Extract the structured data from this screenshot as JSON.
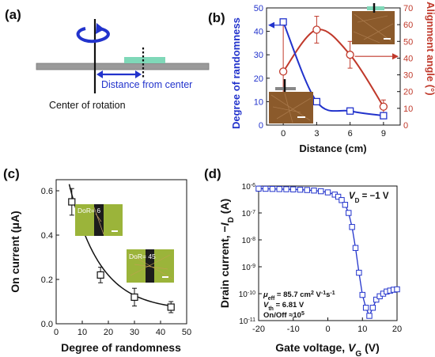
{
  "colors": {
    "blue": "#2233cc",
    "red": "#c0392b",
    "black": "#111111",
    "substrate": "#9a9a9a",
    "film": "#7fd8b8",
    "inset_brown": "#8b5a2b",
    "inset_green": "#9bb43a"
  },
  "panel_a": {
    "label": "(a)",
    "distance_label": "Distance from center",
    "center_label": "Center of rotation"
  },
  "panel_b": {
    "label": "(b)"
  },
  "panel_c": {
    "label": "(c)",
    "inset_top": "DoR= 6",
    "inset_bottom": "DoR= 45"
  },
  "panel_d": {
    "label": "(d)",
    "vd": "V",
    "vd_sub": "D",
    "vd_value": " = −1 V",
    "mu": "μ",
    "mu_sub": "eff",
    "mu_value": " = 85.7 cm",
    "mu_sup1": "2",
    "mu_mid": " V",
    "mu_sup2": "-1",
    "mu_end": "s",
    "mu_sup3": "-1",
    "vth": "V",
    "vth_sub": "th",
    "vth_value": " = 6.81 V",
    "onoff": "On/Off ≈10",
    "onoff_sup": "5"
  },
  "chart_data": [
    {
      "type": "line",
      "panel": "b",
      "x": [
        0,
        3,
        6,
        9
      ],
      "xlabel": "Distance (cm)",
      "xticks": [
        0,
        3,
        6,
        9
      ],
      "xlim": [
        -1.5,
        10.5
      ],
      "series": [
        {
          "axis": "left",
          "marker": "square",
          "values": [
            44,
            10,
            6,
            4
          ],
          "errors": [
            0,
            0,
            0,
            0
          ]
        },
        {
          "axis": "right",
          "marker": "circle",
          "values": [
            32,
            57,
            42,
            11
          ],
          "errors": [
            28,
            8,
            8,
            4
          ]
        }
      ],
      "ylabel_left": "Degree of randomness",
      "ylabel_right": "Alignment angle (°)",
      "ylim_left": [
        0,
        50
      ],
      "yticks_left": [
        0,
        10,
        20,
        30,
        40,
        50
      ],
      "ylim_right": [
        0,
        70
      ],
      "yticks_right": [
        0,
        10,
        20,
        30,
        40,
        50,
        60,
        70
      ]
    },
    {
      "type": "scatter",
      "panel": "c",
      "series": [
        {
          "x": [
            6,
            17,
            30,
            44
          ],
          "values": [
            0.55,
            0.22,
            0.12,
            0.075
          ],
          "errors": [
            0.06,
            0.035,
            0.04,
            0.025
          ]
        }
      ],
      "xlabel": "Degree of randomness",
      "ylabel": "On current (μA)",
      "xlim": [
        0,
        50
      ],
      "xticks": [
        0,
        10,
        20,
        30,
        40,
        50
      ],
      "ylim": [
        0,
        0.65
      ],
      "yticks": [
        0.0,
        0.2,
        0.4,
        0.6
      ]
    },
    {
      "type": "line",
      "panel": "d",
      "xlabel": "Gate voltage, ",
      "xlabel_var": "V",
      "xlabel_sub": "G",
      "xlabel_unit": " (V)",
      "ylabel": "Drain current, −",
      "ylabel_var": "I",
      "ylabel_sub": "D",
      "ylabel_unit": " (A)",
      "xlim": [
        -20,
        20
      ],
      "xticks": [
        -20,
        -10,
        0,
        10,
        20
      ],
      "yscale": "log",
      "ylim_exp": [
        -11,
        -6
      ],
      "ytick_exponents": [
        -11,
        -10,
        -9,
        -8,
        -7,
        -6
      ],
      "ytick_base": "10",
      "series": [
        {
          "x": [
            -20,
            -18,
            -16,
            -14,
            -12,
            -10,
            -8,
            -6,
            -4,
            -2,
            0,
            2,
            3,
            4,
            5,
            6,
            7,
            8,
            9,
            10,
            11,
            12,
            13,
            14,
            15,
            16,
            17,
            18,
            19,
            20
          ],
          "values": [
            8e-07,
            7.9e-07,
            7.8e-07,
            7.7e-07,
            7.6e-07,
            7.5e-07,
            7.3e-07,
            7.1e-07,
            6.8e-07,
            6.4e-07,
            5.8e-07,
            4.8e-07,
            4e-07,
            3e-07,
            2e-07,
            1e-07,
            3e-08,
            5e-09,
            6e-10,
            9e-11,
            3e-11,
            1.5e-11,
            3e-11,
            6e-11,
            8e-11,
            1e-10,
            1.2e-10,
            1.3e-10,
            1.4e-10,
            1.45e-10
          ]
        }
      ]
    }
  ]
}
